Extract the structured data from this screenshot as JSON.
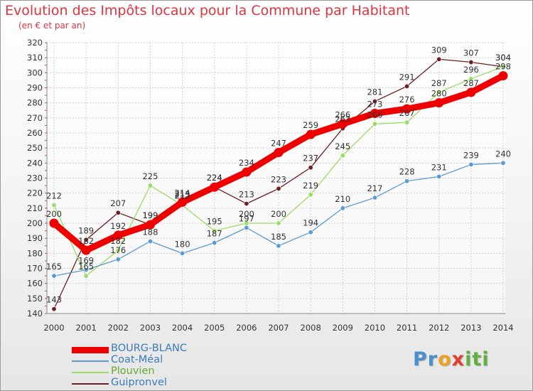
{
  "chart_data": {
    "type": "line",
    "title": "Evolution des Impôts locaux pour la Commune par Habitant",
    "subtitle": "(en € et par an)",
    "xlabel": "",
    "ylabel": "",
    "categories": [
      "2000",
      "2001",
      "2002",
      "2003",
      "2004",
      "2005",
      "2006",
      "2007",
      "2008",
      "2009",
      "2010",
      "2011",
      "2012",
      "2013",
      "2014"
    ],
    "ylim": [
      140,
      320
    ],
    "yticks": [
      140,
      150,
      160,
      170,
      180,
      190,
      200,
      210,
      220,
      230,
      240,
      250,
      260,
      270,
      280,
      290,
      300,
      310,
      320
    ],
    "grid": true,
    "legend_position": "bottom-left",
    "series": [
      {
        "name": "BOURG-BLANC",
        "color": "#ee0000",
        "values": [
          200,
          182,
          192,
          199,
          214,
          224,
          234,
          247,
          259,
          266,
          273,
          276,
          280,
          287,
          298
        ]
      },
      {
        "name": "Coat-Méal",
        "color": "#5b9bd0",
        "values": [
          165,
          169,
          176,
          188,
          180,
          187,
          197,
          185,
          194,
          210,
          217,
          228,
          231,
          239,
          240
        ]
      },
      {
        "name": "Plouvien",
        "color": "#99dd66",
        "values": [
          212,
          165,
          182,
          225,
          212,
          195,
          200,
          200,
          219,
          245,
          266,
          267,
          287,
          296,
          304
        ]
      },
      {
        "name": "Guipronvel",
        "color": "#6b1f1f",
        "values": [
          143,
          189,
          207,
          199,
          213,
          224,
          213,
          223,
          237,
          263,
          281,
          291,
          309,
          307,
          304
        ]
      }
    ]
  },
  "logo": {
    "p1": "Pr",
    "p2": "o",
    "p3": "x",
    "p4": "iti"
  }
}
